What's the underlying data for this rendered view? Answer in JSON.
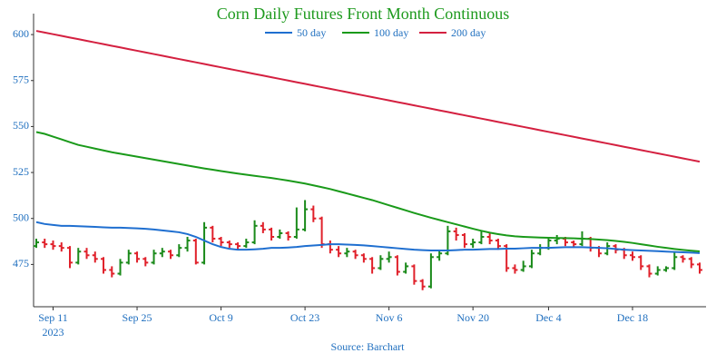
{
  "chart_data": {
    "type": "ohlc",
    "title": "Corn Daily Futures Front Month Continuous",
    "source": "Source: Barchart",
    "year_label": "2023",
    "up_color": "#1a8a1a",
    "down_color": "#e0202a",
    "categories": [
      null,
      null,
      "Sep 11",
      null,
      null,
      null,
      null,
      null,
      null,
      null,
      null,
      null,
      "Sep 25",
      null,
      null,
      null,
      null,
      null,
      null,
      null,
      null,
      null,
      "Oct 9",
      null,
      null,
      null,
      null,
      null,
      null,
      null,
      null,
      null,
      "Oct 23",
      null,
      null,
      null,
      null,
      null,
      null,
      null,
      null,
      null,
      "Nov 6",
      null,
      null,
      null,
      null,
      null,
      null,
      null,
      null,
      null,
      "Nov 20",
      null,
      null,
      null,
      null,
      null,
      null,
      null,
      null,
      "Dec 4",
      null,
      null,
      null,
      null,
      null,
      null,
      null,
      null,
      null,
      "Dec 18",
      null,
      null,
      null,
      null,
      null,
      null,
      null,
      null
    ],
    "ohlc": [
      [
        485,
        489,
        484,
        487
      ],
      [
        487,
        489,
        484,
        486
      ],
      [
        486,
        488,
        483,
        485
      ],
      [
        485,
        487,
        482,
        484
      ],
      [
        484,
        485,
        473,
        476
      ],
      [
        476,
        484,
        475,
        482
      ],
      [
        482,
        484,
        478,
        480
      ],
      [
        480,
        482,
        476,
        478
      ],
      [
        478,
        479,
        470,
        472
      ],
      [
        472,
        474,
        468,
        470
      ],
      [
        470,
        478,
        469,
        476
      ],
      [
        476,
        483,
        475,
        481
      ],
      [
        481,
        482,
        476,
        478
      ],
      [
        478,
        479,
        474,
        476
      ],
      [
        476,
        483,
        475,
        481
      ],
      [
        481,
        484,
        479,
        482
      ],
      [
        482,
        483,
        478,
        480
      ],
      [
        480,
        486,
        479,
        484
      ],
      [
        484,
        490,
        482,
        488
      ],
      [
        488,
        489,
        475,
        476
      ],
      [
        476,
        498,
        475,
        495
      ],
      [
        495,
        496,
        487,
        489
      ],
      [
        489,
        490,
        485,
        487
      ],
      [
        487,
        488,
        484,
        486
      ],
      [
        486,
        487,
        483,
        485
      ],
      [
        485,
        489,
        484,
        487
      ],
      [
        487,
        499,
        486,
        496
      ],
      [
        496,
        498,
        492,
        494
      ],
      [
        494,
        495,
        488,
        490
      ],
      [
        490,
        494,
        489,
        492
      ],
      [
        492,
        493,
        488,
        490
      ],
      [
        490,
        506,
        489,
        494
      ],
      [
        494,
        510,
        493,
        505
      ],
      [
        505,
        507,
        498,
        500
      ],
      [
        500,
        501,
        484,
        486
      ],
      [
        486,
        488,
        481,
        483
      ],
      [
        483,
        485,
        479,
        481
      ],
      [
        481,
        484,
        479,
        482
      ],
      [
        482,
        483,
        478,
        480
      ],
      [
        480,
        481,
        476,
        478
      ],
      [
        478,
        479,
        470,
        473
      ],
      [
        473,
        480,
        472,
        478
      ],
      [
        478,
        482,
        476,
        479
      ],
      [
        479,
        480,
        469,
        471
      ],
      [
        471,
        476,
        470,
        474
      ],
      [
        474,
        475,
        464,
        466
      ],
      [
        466,
        467,
        461,
        463
      ],
      [
        463,
        481,
        462,
        479
      ],
      [
        479,
        483,
        477,
        481
      ],
      [
        481,
        496,
        480,
        493
      ],
      [
        493,
        495,
        488,
        491
      ],
      [
        491,
        492,
        484,
        486
      ],
      [
        486,
        489,
        484,
        487
      ],
      [
        487,
        493,
        486,
        490
      ],
      [
        490,
        492,
        486,
        488
      ],
      [
        488,
        489,
        483,
        485
      ],
      [
        485,
        486,
        471,
        473
      ],
      [
        473,
        475,
        470,
        472
      ],
      [
        472,
        477,
        471,
        474
      ],
      [
        474,
        483,
        473,
        481
      ],
      [
        481,
        486,
        480,
        484
      ],
      [
        484,
        490,
        483,
        488
      ],
      [
        488,
        491,
        486,
        489
      ],
      [
        489,
        490,
        485,
        487
      ],
      [
        487,
        488,
        484,
        486
      ],
      [
        486,
        493,
        485,
        489
      ],
      [
        489,
        490,
        482,
        484
      ],
      [
        484,
        485,
        479,
        481
      ],
      [
        481,
        487,
        480,
        485
      ],
      [
        485,
        486,
        481,
        483
      ],
      [
        483,
        484,
        478,
        480
      ],
      [
        480,
        482,
        477,
        479
      ],
      [
        479,
        480,
        472,
        474
      ],
      [
        474,
        475,
        468,
        470
      ],
      [
        470,
        474,
        469,
        472
      ],
      [
        472,
        474,
        471,
        473
      ],
      [
        473,
        482,
        472,
        479
      ],
      [
        479,
        480,
        476,
        478
      ],
      [
        478,
        479,
        473,
        475
      ],
      [
        475,
        476,
        470,
        472
      ]
    ],
    "series": [
      {
        "name": "50 day",
        "color": "#1f6fd0",
        "values": [
          498,
          497,
          496.5,
          496,
          496,
          495.8,
          495.6,
          495.4,
          495.2,
          495,
          495,
          494.8,
          494.6,
          494.4,
          494,
          493.5,
          493,
          492.5,
          491.5,
          490,
          488,
          486,
          484.5,
          483.5,
          483,
          483,
          483.2,
          483.5,
          484,
          484,
          484.2,
          484.5,
          485,
          485.3,
          485.6,
          486,
          486,
          485.8,
          485.6,
          485.4,
          485,
          484.6,
          484.2,
          483.8,
          483.4,
          483,
          482.8,
          482.6,
          482.6,
          482.6,
          482.8,
          483,
          483,
          483.2,
          483.4,
          483.4,
          483.6,
          483.6,
          483.8,
          484,
          484,
          484,
          484.2,
          484.4,
          484.4,
          484.4,
          484.2,
          484,
          483.8,
          483.4,
          483,
          482.8,
          482.6,
          482.4,
          482.2,
          482,
          481.8,
          481.6,
          481.4,
          481.2
        ]
      },
      {
        "name": "100 day",
        "color": "#1a9a1a",
        "values": [
          547,
          546,
          544.5,
          543,
          541.5,
          540,
          539,
          538,
          537,
          536,
          535.2,
          534.4,
          533.6,
          532.8,
          532,
          531.2,
          530.4,
          529.6,
          528.8,
          528,
          527.2,
          526.5,
          525.8,
          525.1,
          524.4,
          523.8,
          523.2,
          522.6,
          522,
          521.3,
          520.6,
          519.8,
          519,
          518,
          517,
          516,
          514.8,
          513.6,
          512.4,
          511.2,
          510,
          508.6,
          507.2,
          505.8,
          504.4,
          503,
          501.7,
          500.4,
          499.2,
          498,
          496.8,
          495.6,
          494.4,
          493.3,
          492.3,
          491.5,
          490.8,
          490.3,
          490,
          489.8,
          489.6,
          489.5,
          489.4,
          489.3,
          489.2,
          489,
          488.8,
          488.5,
          488.2,
          487.8,
          487.3,
          486.7,
          486,
          485.3,
          484.6,
          484,
          483.4,
          482.9,
          482.5,
          482.1
        ]
      },
      {
        "name": "200 day",
        "color": "#d42040",
        "values": [
          602,
          601.1,
          600.2,
          599.3,
          598.4,
          597.5,
          596.6,
          595.7,
          594.8,
          593.9,
          593,
          592.1,
          591.2,
          590.3,
          589.4,
          588.5,
          587.6,
          586.7,
          585.8,
          584.9,
          584,
          583.1,
          582.2,
          581.3,
          580.4,
          579.5,
          578.6,
          577.7,
          576.8,
          575.9,
          575,
          574.1,
          573.2,
          572.3,
          571.4,
          570.5,
          569.6,
          568.7,
          567.8,
          566.9,
          566,
          565.1,
          564.2,
          563.3,
          562.4,
          561.5,
          560.6,
          559.7,
          558.8,
          557.9,
          557,
          556.1,
          555.2,
          554.3,
          553.4,
          552.5,
          551.6,
          550.7,
          549.8,
          548.9,
          548,
          547.1,
          546.2,
          545.3,
          544.4,
          543.5,
          542.6,
          541.7,
          540.8,
          539.9,
          539,
          538.1,
          537.2,
          536.3,
          535.4,
          534.5,
          533.6,
          532.7,
          531.8,
          530.9
        ]
      }
    ],
    "ylim": [
      452,
      611.4
    ],
    "yticks": [
      475,
      500,
      525,
      550,
      575,
      600
    ],
    "grid": false
  }
}
